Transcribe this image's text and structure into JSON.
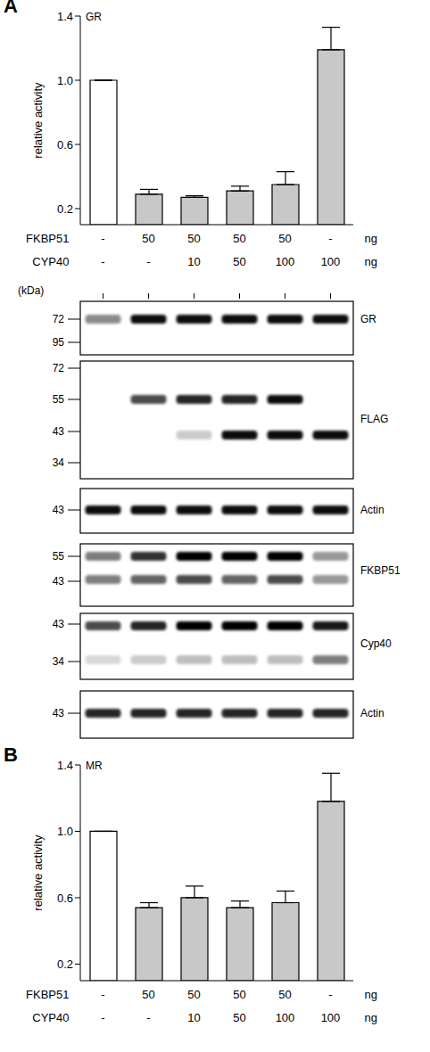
{
  "chart_data": [
    {
      "type": "bar",
      "panel": "A",
      "title": "GR",
      "y_label": "relative activity",
      "ylim": [
        0.1,
        1.4
      ],
      "yticks": [
        0.2,
        0.6,
        {
          "value": 1,
          "label": "1.0"
        },
        1.4
      ],
      "values": [
        1,
        0.29,
        0.27,
        0.31,
        0.35,
        1.19
      ],
      "errors": [
        0,
        0.03,
        0.01,
        0.03,
        0.08,
        0.14
      ],
      "colors": [
        "#ffffff",
        "#c8c8c8",
        "#c8c8c8",
        "#c8c8c8",
        "#c8c8c8",
        "#c8c8c8"
      ],
      "x_table": [
        {
          "name": "FKBP51",
          "cells": [
            "-",
            "50",
            "50",
            "50",
            "50",
            "-"
          ],
          "unit": "ng"
        },
        {
          "name": "CYP40",
          "cells": [
            "-",
            "-",
            "10",
            "50",
            "100",
            "100"
          ],
          "unit": "ng"
        }
      ]
    },
    {
      "type": "bar",
      "panel": "B",
      "title": "MR",
      "y_label": "relative activity",
      "ylim": [
        0.1,
        1.4
      ],
      "yticks": [
        0.2,
        0.6,
        {
          "value": 1,
          "label": "1.0"
        },
        1.4
      ],
      "values": [
        1,
        0.54,
        0.6,
        0.54,
        0.57,
        1.18
      ],
      "errors": [
        0,
        0.03,
        0.07,
        0.04,
        0.07,
        0.17
      ],
      "colors": [
        "#ffffff",
        "#c8c8c8",
        "#c8c8c8",
        "#c8c8c8",
        "#c8c8c8",
        "#c8c8c8"
      ],
      "x_table": [
        {
          "name": "FKBP51",
          "cells": [
            "-",
            "50",
            "50",
            "50",
            "50",
            "-"
          ],
          "unit": "ng"
        },
        {
          "name": "CYP40",
          "cells": [
            "-",
            "-",
            "10",
            "50",
            "100",
            "100"
          ],
          "unit": "ng"
        }
      ]
    }
  ],
  "blots": {
    "unit_label": "(kDa)",
    "panels": [
      {
        "label": "GR",
        "markers": [
          72,
          95
        ]
      },
      {
        "label": "FLAG",
        "markers": [
          72,
          55,
          43,
          34
        ]
      },
      {
        "label": "Actin",
        "markers": [
          43
        ]
      },
      {
        "label": "FKBP51",
        "markers": [
          55,
          43
        ]
      },
      {
        "label": "Cyp40",
        "markers": [
          43,
          34
        ]
      },
      {
        "label": "Actin",
        "markers": [
          43
        ]
      }
    ]
  }
}
